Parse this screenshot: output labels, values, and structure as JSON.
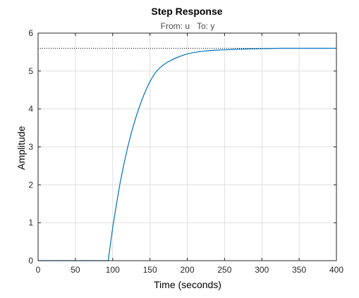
{
  "chart_data": {
    "type": "line",
    "title": "Step Response",
    "subtitle_from_label": "From: u",
    "subtitle_to_label": "To: y",
    "xlabel": "Time (seconds)",
    "ylabel": "Amplitude",
    "xlim": [
      0,
      400
    ],
    "ylim": [
      0,
      6
    ],
    "xticks": [
      0,
      50,
      100,
      150,
      200,
      250,
      300,
      350,
      400
    ],
    "yticks": [
      0,
      1,
      2,
      3,
      4,
      5,
      6
    ],
    "grid": true,
    "series": [
      {
        "color": "#0072bd",
        "x": [
          0,
          50,
          94,
          100,
          110,
          120,
          130,
          140,
          150,
          160,
          175,
          200,
          225,
          250,
          275,
          300,
          325,
          350,
          375,
          400
        ],
        "y": [
          0,
          0,
          0,
          0.87,
          2.05,
          2.98,
          3.71,
          4.28,
          4.72,
          5.02,
          5.25,
          5.45,
          5.53,
          5.56,
          5.58,
          5.59,
          5.6,
          5.6,
          5.6,
          5.6
        ]
      }
    ],
    "steady_state": {
      "value": 5.6,
      "style": "dotted",
      "color": "#000000"
    }
  }
}
